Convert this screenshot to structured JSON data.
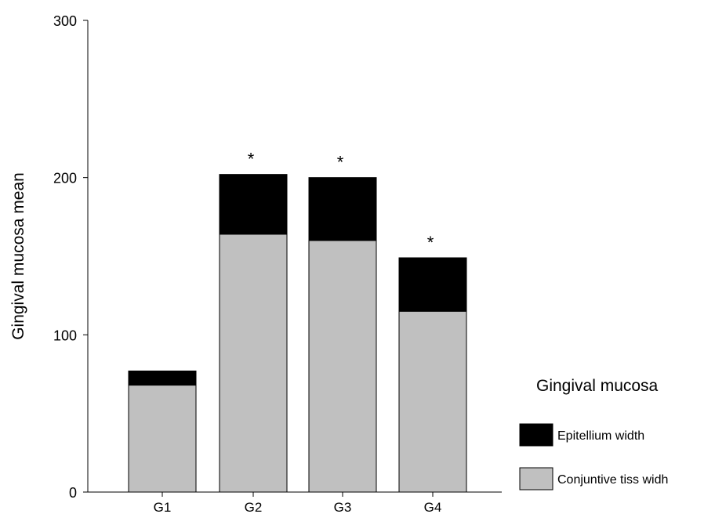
{
  "chart_data": {
    "type": "bar",
    "stacked": true,
    "categories": [
      "G1",
      "G2",
      "G3",
      "G4"
    ],
    "series": [
      {
        "name": "Conjuntive tiss widh",
        "values": [
          68,
          164,
          160,
          115
        ],
        "color": "#c0c0c0"
      },
      {
        "name": "Epitellium width",
        "values": [
          9,
          38,
          40,
          34
        ],
        "color": "#000000"
      }
    ],
    "annotations": [
      "",
      "*",
      "*",
      "*"
    ],
    "ylabel": "Gingival  mucosa mean",
    "xlabel": "",
    "ylim": [
      0,
      300
    ],
    "yticks": [
      0,
      100,
      200,
      300
    ],
    "grid": false,
    "legend": {
      "title": "Gingival mucosa",
      "placement": "right",
      "order": [
        "Epitellium width",
        "Conjuntive tiss widh"
      ]
    }
  }
}
